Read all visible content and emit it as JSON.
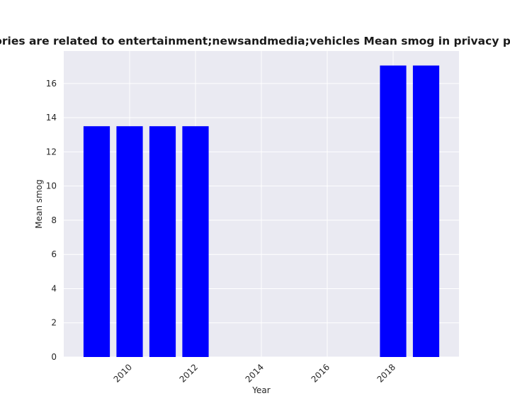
{
  "chart_data": {
    "type": "bar",
    "title": "categories are related to entertainment;newsandmedia;vehicles Mean smog in privacy policies",
    "xlabel": "Year",
    "ylabel": "Mean smog",
    "x": [
      2009,
      2010,
      2011,
      2012,
      2018,
      2019
    ],
    "values": [
      13.5,
      13.5,
      13.5,
      13.5,
      17.05,
      17.05
    ],
    "xlim": [
      2008,
      2020
    ],
    "ylim": [
      0,
      17.9
    ],
    "xticks": [
      2010,
      2012,
      2014,
      2016,
      2018
    ],
    "yticks": [
      0,
      2,
      4,
      6,
      8,
      10,
      12,
      14,
      16
    ],
    "bar_color": "#0000ff",
    "background_color": "#eaeaf2",
    "grid_color": "#ffffff",
    "grid": true,
    "legend": "none"
  }
}
